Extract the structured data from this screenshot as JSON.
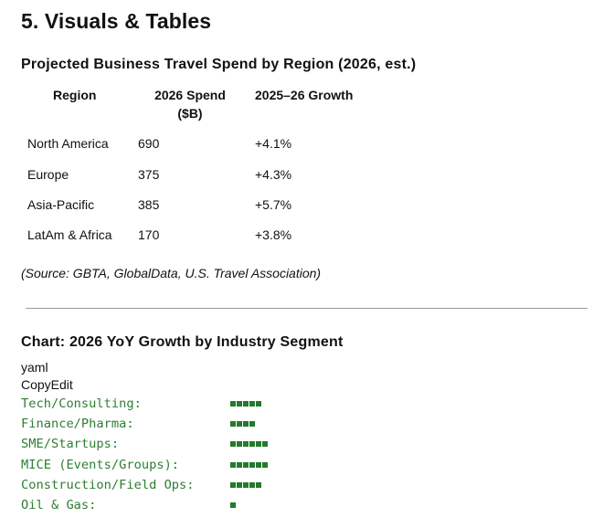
{
  "section": {
    "title": "5. Visuals & Tables"
  },
  "table": {
    "title": "Projected Business Travel Spend by Region (2026, est.)",
    "headers": {
      "region": "Region",
      "spend_line1": "2026 Spend",
      "spend_line2": "($B)",
      "growth": "2025–26 Growth"
    },
    "rows": [
      {
        "region": "North America",
        "spend": "690",
        "growth": "+4.1%"
      },
      {
        "region": "Europe",
        "spend": "375",
        "growth": "+4.3%"
      },
      {
        "region": "Asia-Pacific",
        "spend": "385",
        "growth": "+5.7%"
      },
      {
        "region": "LatAm & Africa",
        "spend": "170",
        "growth": "+3.8%"
      }
    ],
    "source": "(Source: GBTA, GlobalData, U.S. Travel Association)"
  },
  "chart": {
    "title": "Chart: 2026 YoY Growth by Industry Segment",
    "code_language": "yaml",
    "copy_label": "CopyEdit",
    "bar_color": "#237a2c",
    "label_color": "#2e7d32"
  },
  "chart_data": {
    "type": "bar",
    "title": "Chart: 2026 YoY Growth by Industry Segment",
    "categories": [
      "Tech/Consulting:",
      "Finance/Pharma:",
      "SME/Startups:",
      "MICE (Events/Groups):",
      "Construction/Field Ops:",
      "Oil & Gas:"
    ],
    "values": [
      5,
      4,
      6,
      6,
      5,
      1
    ],
    "xlabel": "",
    "ylabel": ""
  }
}
